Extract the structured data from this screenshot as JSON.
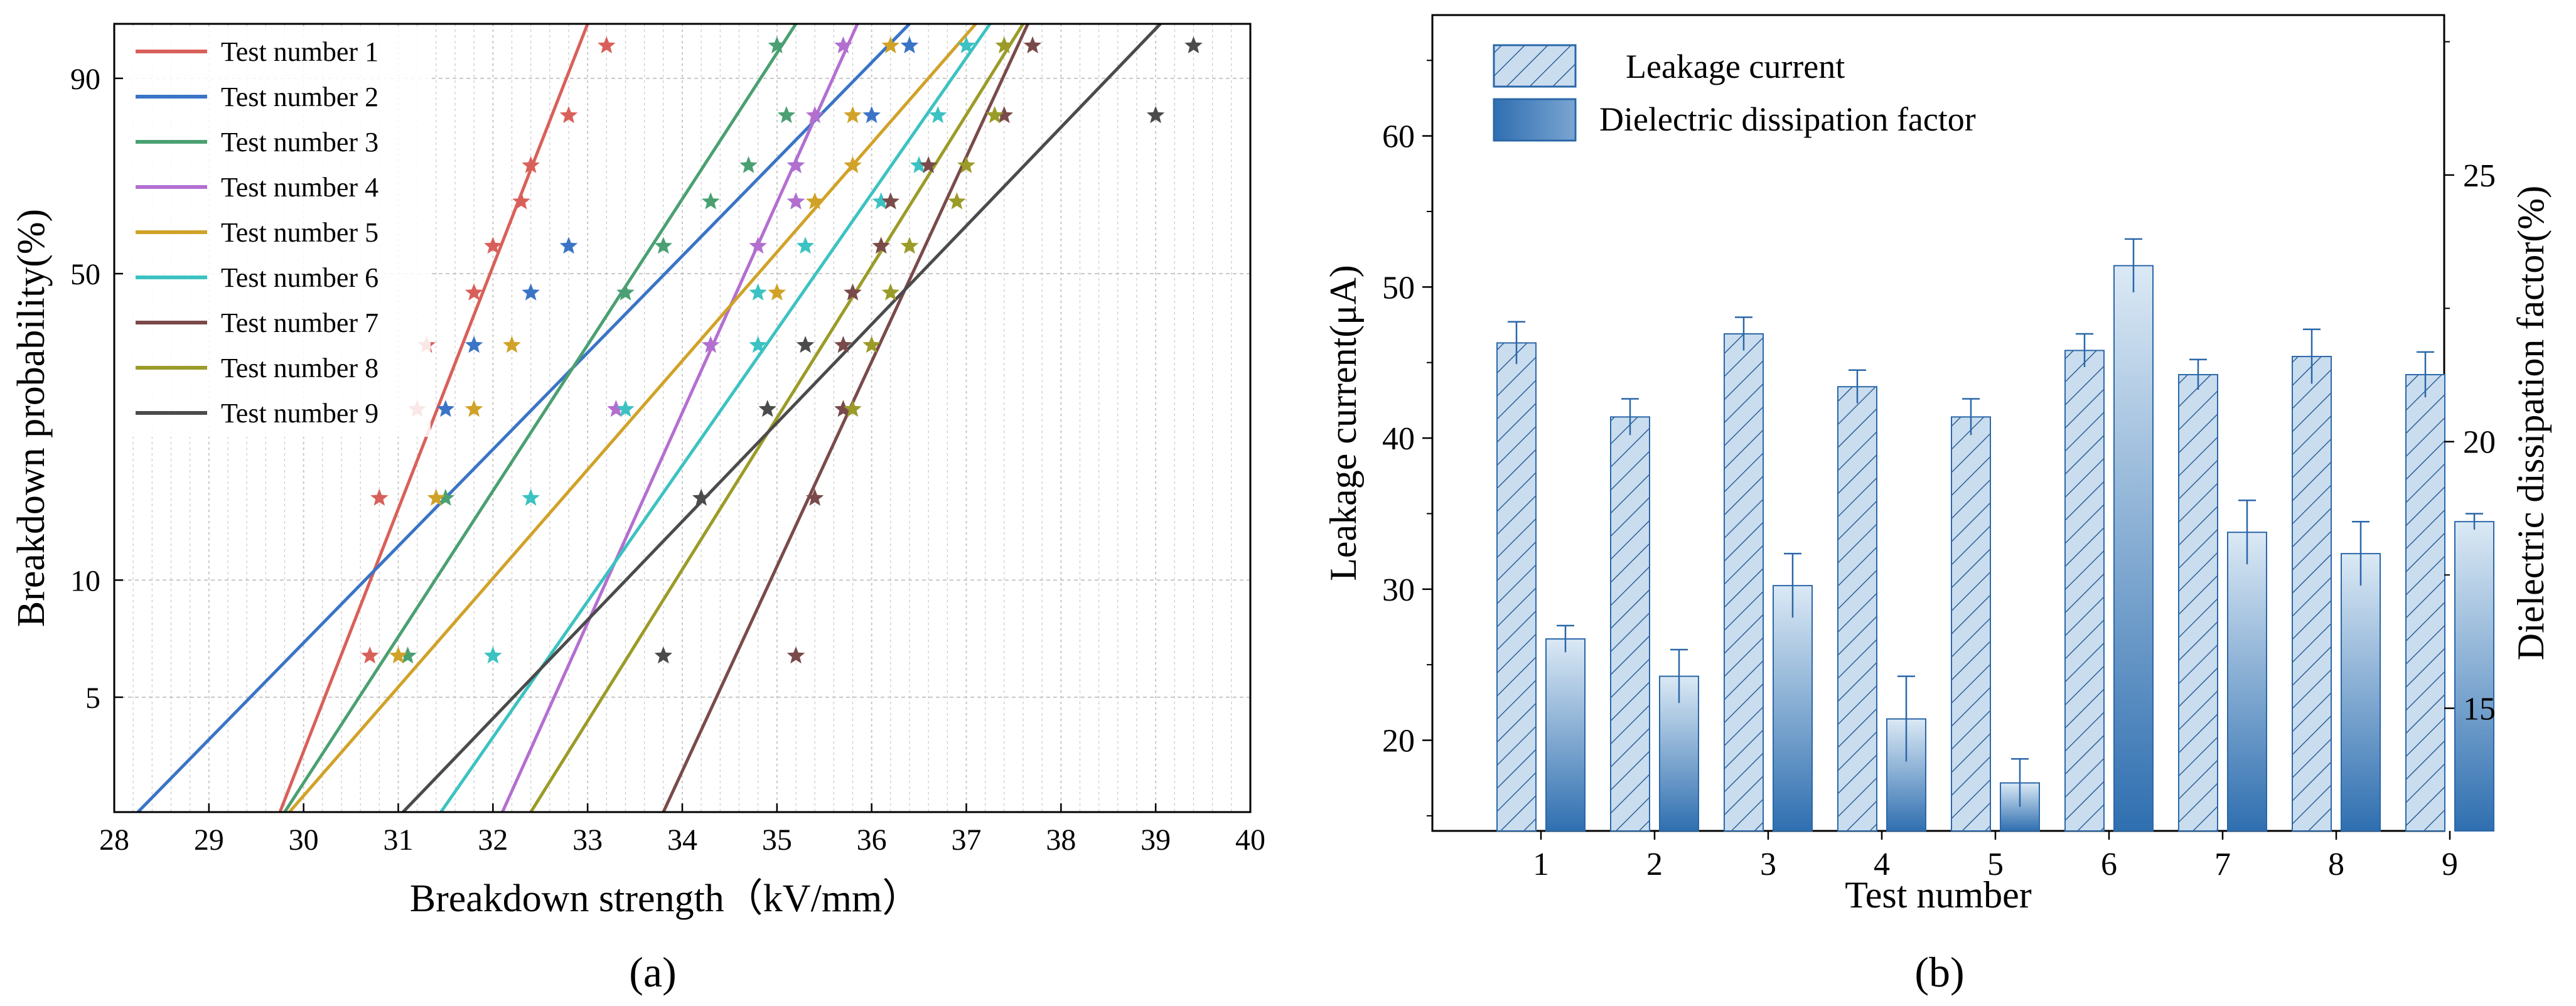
{
  "figure": {
    "panel_a_label": "(a)",
    "panel_b_label": "(b)"
  },
  "colors": {
    "axis": "#000000",
    "grid": "#bdbdbd",
    "bar_dark": "#2f6fb0",
    "bar_light": "#dbe9f5",
    "bar_edge": "#2a67a8",
    "legend_edge": "#666666"
  },
  "chart_data": [
    {
      "id": "a",
      "type": "scatter",
      "title": "",
      "xlabel": "Breakdown strength（kV/mm）",
      "ylabel": "Breakdown probability(%)",
      "xlim": [
        28,
        40
      ],
      "ylim_percent": [
        2.5,
        96
      ],
      "yscale": "weibull-probability",
      "x_ticks": [
        28,
        29,
        30,
        31,
        32,
        33,
        34,
        35,
        36,
        37,
        38,
        39,
        40
      ],
      "x_tick_labels": [
        "28",
        "29",
        "30",
        "31",
        "32",
        "33",
        "34",
        "35",
        "36",
        "37",
        "38",
        "39",
        "40"
      ],
      "y_ticks": [
        5,
        10,
        50,
        90
      ],
      "y_tick_labels": [
        "5",
        "10",
        "50",
        "90"
      ],
      "legend_location": "top-left",
      "series": [
        {
          "name": "Test number 1",
          "color": "#d9605a",
          "line": [
            [
              29.75,
              2.5
            ],
            [
              33.0,
              96
            ]
          ],
          "points": [
            [
              30.7,
              6.4
            ],
            [
              30.8,
              16
            ],
            [
              31.2,
              26
            ],
            [
              31.3,
              36
            ],
            [
              31.8,
              46
            ],
            [
              32.0,
              56
            ],
            [
              32.3,
              66
            ],
            [
              32.4,
              74
            ],
            [
              32.8,
              84
            ],
            [
              33.2,
              94
            ]
          ]
        },
        {
          "name": "Test number 2",
          "color": "#3a74c6",
          "line": [
            [
              28.25,
              2.5
            ],
            [
              36.4,
              96
            ]
          ],
          "points": [
            [
              31.5,
              26
            ],
            [
              31.8,
              36
            ],
            [
              32.4,
              46
            ],
            [
              32.8,
              56
            ],
            [
              35.2,
              66
            ],
            [
              35.2,
              74
            ],
            [
              36.0,
              84
            ],
            [
              36.4,
              94
            ]
          ]
        },
        {
          "name": "Test number 3",
          "color": "#4aa072",
          "line": [
            [
              29.8,
              2.5
            ],
            [
              35.2,
              96
            ]
          ],
          "points": [
            [
              31.1,
              6.4
            ],
            [
              31.5,
              16
            ],
            [
              33.4,
              46
            ],
            [
              33.8,
              56
            ],
            [
              34.3,
              66
            ],
            [
              34.7,
              74
            ],
            [
              35.1,
              84
            ],
            [
              35.0,
              94
            ]
          ]
        },
        {
          "name": "Test number 4",
          "color": "#b36fd0",
          "line": [
            [
              32.1,
              2.5
            ],
            [
              35.85,
              96
            ]
          ],
          "points": [
            [
              33.3,
              26
            ],
            [
              34.3,
              36
            ],
            [
              34.8,
              56
            ],
            [
              35.2,
              66
            ],
            [
              35.2,
              74
            ],
            [
              35.4,
              84
            ],
            [
              35.7,
              94
            ]
          ]
        },
        {
          "name": "Test number 5",
          "color": "#d0a227",
          "line": [
            [
              29.85,
              2.5
            ],
            [
              37.1,
              96
            ]
          ],
          "points": [
            [
              31.0,
              6.4
            ],
            [
              31.4,
              16
            ],
            [
              31.8,
              26
            ],
            [
              32.2,
              36
            ],
            [
              35.0,
              46
            ],
            [
              35.4,
              66
            ],
            [
              35.8,
              74
            ],
            [
              35.8,
              84
            ],
            [
              36.2,
              94
            ]
          ]
        },
        {
          "name": "Test number 6",
          "color": "#3cc2c2",
          "line": [
            [
              31.45,
              2.5
            ],
            [
              37.25,
              96
            ]
          ],
          "points": [
            [
              32.0,
              6.4
            ],
            [
              32.4,
              16
            ],
            [
              33.4,
              26
            ],
            [
              34.8,
              36
            ],
            [
              34.8,
              46
            ],
            [
              35.3,
              56
            ],
            [
              36.1,
              66
            ],
            [
              36.5,
              74
            ],
            [
              36.7,
              84
            ],
            [
              37.0,
              94
            ]
          ]
        },
        {
          "name": "Test number 7",
          "color": "#7a4a4a",
          "line": [
            [
              33.8,
              2.5
            ],
            [
              37.65,
              96
            ]
          ],
          "points": [
            [
              35.2,
              6.4
            ],
            [
              35.4,
              16
            ],
            [
              35.7,
              26
            ],
            [
              35.7,
              36
            ],
            [
              35.8,
              46
            ],
            [
              36.1,
              56
            ],
            [
              36.2,
              66
            ],
            [
              36.6,
              74
            ],
            [
              37.4,
              84
            ],
            [
              37.7,
              94
            ]
          ]
        },
        {
          "name": "Test number 8",
          "color": "#9b9b28",
          "line": [
            [
              32.4,
              2.5
            ],
            [
              37.6,
              96
            ]
          ],
          "points": [
            [
              35.8,
              26
            ],
            [
              36.0,
              36
            ],
            [
              36.2,
              46
            ],
            [
              36.4,
              56
            ],
            [
              36.9,
              66
            ],
            [
              37.0,
              74
            ],
            [
              37.3,
              84
            ],
            [
              37.4,
              94
            ]
          ]
        },
        {
          "name": "Test number 9",
          "color": "#4b4b4b",
          "line": [
            [
              31.05,
              2.5
            ],
            [
              39.05,
              96
            ]
          ],
          "points": [
            [
              33.8,
              6.4
            ],
            [
              34.2,
              16
            ],
            [
              34.9,
              26
            ],
            [
              35.3,
              36
            ],
            [
              39.0,
              84
            ],
            [
              39.4,
              94
            ]
          ]
        }
      ]
    },
    {
      "id": "b",
      "type": "bar",
      "title": "",
      "xlabel": "Test number",
      "ylabel": "Leakage current(μA)",
      "ylabel_right": "Dielectric dissipation factor(%)",
      "categories": [
        "1",
        "2",
        "3",
        "4",
        "5",
        "6",
        "7",
        "8",
        "9"
      ],
      "ylim": [
        14,
        68
      ],
      "ylim_right": [
        12.7,
        28
      ],
      "y_ticks": [
        20,
        30,
        40,
        50,
        60
      ],
      "y_tick_labels": [
        "20",
        "30",
        "40",
        "50",
        "60"
      ],
      "y_ticks_right": [
        15,
        20,
        25
      ],
      "y_tick_labels_right": [
        "15",
        "20",
        "25"
      ],
      "legend_location": "top-left",
      "series": [
        {
          "name": "Leakage current",
          "axis": "left",
          "style": "hatched-light",
          "values": [
            46.3,
            41.4,
            46.9,
            43.4,
            41.4,
            45.8,
            44.2,
            45.4,
            44.2
          ],
          "errors": [
            1.4,
            1.2,
            1.1,
            1.1,
            1.2,
            1.1,
            1.0,
            1.8,
            1.5
          ]
        },
        {
          "name": "Dielectric dissipation factor",
          "axis": "right",
          "style": "gradient-blue",
          "values": [
            16.3,
            15.6,
            17.3,
            14.8,
            13.6,
            23.3,
            18.3,
            17.9,
            18.5
          ],
          "errors": [
            0.25,
            0.5,
            0.6,
            0.8,
            0.45,
            0.5,
            0.6,
            0.6,
            0.15
          ]
        }
      ]
    }
  ]
}
